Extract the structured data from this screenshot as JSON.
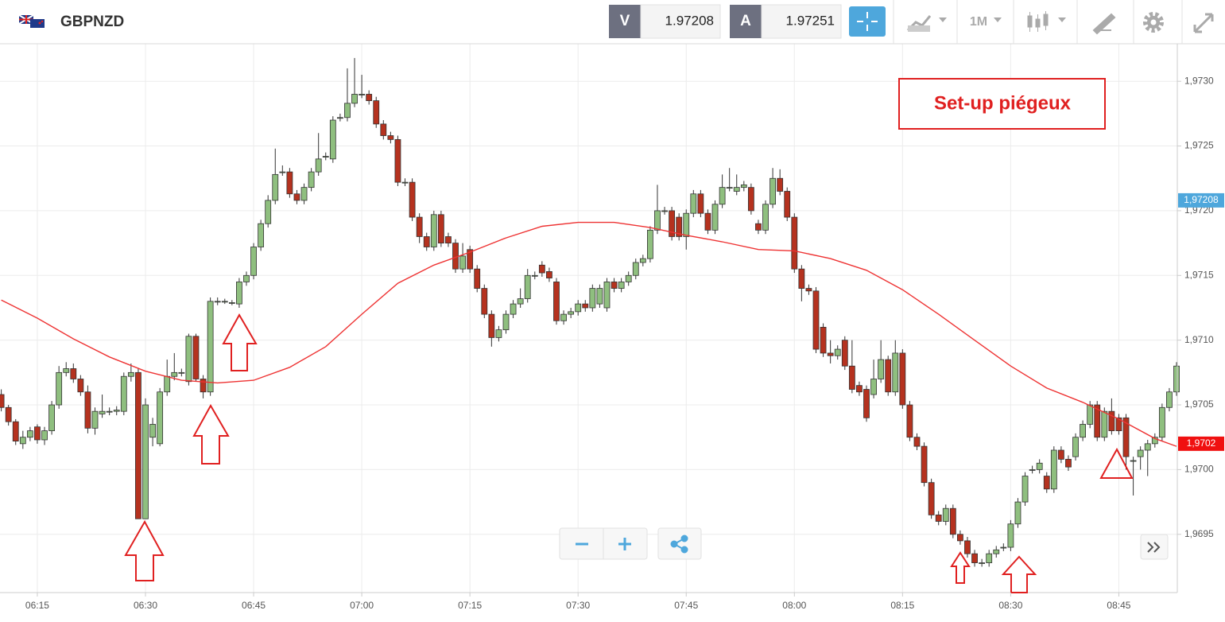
{
  "header": {
    "symbol": "GBPNZD",
    "bid_label": "V",
    "bid": "1.97208",
    "ask_label": "A",
    "ask": "1.97251",
    "timeframe": "1M"
  },
  "chart_data": {
    "type": "candlestick",
    "annotation": "Set-up piégeux",
    "up_color": "#8fbf7f",
    "down_color": "#b5321f",
    "grid": true,
    "ylim": [
      1.96905,
      1.97329
    ],
    "yticks": [
      {
        "value": 1.9695,
        "label": "1,9695"
      },
      {
        "value": 1.97,
        "label": "1,9700"
      },
      {
        "value": 1.9705,
        "label": "1,9705"
      },
      {
        "value": 1.971,
        "label": "1,9710"
      },
      {
        "value": 1.9715,
        "label": "1,9715"
      },
      {
        "value": 1.972,
        "label": "1,9720"
      },
      {
        "value": 1.9725,
        "label": "1,9725"
      },
      {
        "value": 1.973,
        "label": "1,9730"
      }
    ],
    "price_tags": [
      {
        "value": 1.97208,
        "label": "1,97208",
        "color": "#4ea7dc"
      },
      {
        "value": 1.9702,
        "label": "1,9702",
        "color": "#f01010"
      }
    ],
    "x": [
      "06:10",
      "06:11",
      "06:12",
      "06:13",
      "06:14",
      "06:15",
      "06:16",
      "06:17",
      "06:18",
      "06:19",
      "06:20",
      "06:21",
      "06:22",
      "06:23",
      "06:24",
      "06:25",
      "06:26",
      "06:27",
      "06:28",
      "06:29",
      "06:30",
      "06:31",
      "06:32",
      "06:33",
      "06:34",
      "06:35",
      "06:36",
      "06:37",
      "06:38",
      "06:39",
      "06:40",
      "06:41",
      "06:42",
      "06:43",
      "06:44",
      "06:45",
      "06:46",
      "06:47",
      "06:48",
      "06:49",
      "06:50",
      "06:51",
      "06:52",
      "06:53",
      "06:54",
      "06:55",
      "06:56",
      "06:57",
      "06:58",
      "06:59",
      "07:00",
      "07:01",
      "07:02",
      "07:03",
      "07:04",
      "07:05",
      "07:06",
      "07:07",
      "07:08",
      "07:09",
      "07:10",
      "07:11",
      "07:12",
      "07:13",
      "07:14",
      "07:15",
      "07:16",
      "07:17",
      "07:18",
      "07:19",
      "07:20",
      "07:21",
      "07:22",
      "07:23",
      "07:24",
      "07:25",
      "07:26",
      "07:27",
      "07:28",
      "07:29",
      "07:30",
      "07:31",
      "07:32",
      "07:33",
      "07:34",
      "07:35",
      "07:36",
      "07:37",
      "07:38",
      "07:39",
      "07:40",
      "07:41",
      "07:42",
      "07:43",
      "07:44",
      "07:45",
      "07:46",
      "07:47",
      "07:48",
      "07:49",
      "07:50",
      "07:51",
      "07:52",
      "07:53",
      "07:54",
      "07:55",
      "07:56",
      "07:57",
      "07:58",
      "07:59",
      "08:00",
      "08:01",
      "08:02",
      "08:03",
      "08:04",
      "08:05",
      "08:06",
      "08:07",
      "08:08",
      "08:09",
      "08:10",
      "08:11",
      "08:12",
      "08:13",
      "08:14",
      "08:15",
      "08:16",
      "08:17",
      "08:18",
      "08:19",
      "08:20",
      "08:21",
      "08:22",
      "08:23",
      "08:24",
      "08:25",
      "08:26",
      "08:27",
      "08:28",
      "08:29",
      "08:30",
      "08:31",
      "08:32",
      "08:33",
      "08:34",
      "08:35",
      "08:36",
      "08:37",
      "08:38",
      "08:39",
      "08:40",
      "08:41",
      "08:42",
      "08:43",
      "08:44",
      "08:45",
      "08:46",
      "08:47",
      "08:48",
      "08:49",
      "08:50",
      "08:51",
      "08:52",
      "08:53"
    ],
    "open": [
      1.97058,
      1.97048,
      1.97037,
      1.9702,
      1.97025,
      1.97033,
      1.97023,
      1.9703,
      1.9705,
      1.97075,
      1.97078,
      1.9707,
      1.9706,
      1.97032,
      1.97043,
      1.97045,
      1.97045,
      1.97045,
      1.97072,
      1.97075,
      1.96962,
      1.97025,
      1.9702,
      1.9706,
      1.97072,
      1.97075,
      1.97068,
      1.97103,
      1.9707,
      1.9706,
      1.9713,
      1.9713,
      1.97129,
      1.97128,
      1.97145,
      1.9715,
      1.97172,
      1.9719,
      1.97208,
      1.9723,
      1.9723,
      1.97213,
      1.97208,
      1.97218,
      1.9723,
      1.97242,
      1.9724,
      1.97272,
      1.97272,
      1.97283,
      1.9729,
      1.9729,
      1.97285,
      1.97267,
      1.97258,
      1.97255,
      1.97222,
      1.97222,
      1.97195,
      1.9718,
      1.97172,
      1.97197,
      1.9718,
      1.97175,
      1.97155,
      1.9717,
      1.97155,
      1.9714,
      1.9712,
      1.97102,
      1.97108,
      1.9712,
      1.97128,
      1.97132,
      1.9715,
      1.97158,
      1.97153,
      1.97145,
      1.97115,
      1.9712,
      1.97122,
      1.97128,
      1.97125,
      1.97128,
      1.97125,
      1.97145,
      1.9714,
      1.97145,
      1.9715,
      1.9716,
      1.97163,
      1.97185,
      1.972,
      1.972,
      1.97195,
      1.9718,
      1.97198,
      1.97213,
      1.97198,
      1.97185,
      1.97205,
      1.97218,
      1.97215,
      1.97218,
      1.97218,
      1.9719,
      1.97185,
      1.97205,
      1.97225,
      1.97215,
      1.97195,
      1.97155,
      1.9714,
      1.97138,
      1.9711,
      1.9709,
      1.97088,
      1.971,
      1.9708,
      1.97065,
      1.97062,
      1.97058,
      1.9707,
      1.97085,
      1.9706,
      1.9709,
      1.9705,
      1.97025,
      1.97018,
      1.9699,
      1.96965,
      1.9696,
      1.9697,
      1.9695,
      1.96945,
      1.96935,
      1.96928,
      1.96928,
      1.96935,
      1.9694,
      1.9694,
      1.96958,
      1.96975,
      1.97,
      1.97,
      1.96995,
      1.96985,
      1.97015,
      1.97008,
      1.9701,
      1.97025,
      1.97035,
      1.9705,
      1.97025,
      1.97045,
      1.9704,
      1.9704,
      1.97007,
      1.9701,
      1.97015,
      1.9702,
      1.97025,
      1.97048,
      1.9706
    ],
    "high": [
      1.97062,
      1.9705,
      1.97039,
      1.9703,
      1.97033,
      1.97035,
      1.97033,
      1.97053,
      1.9708,
      1.97083,
      1.97082,
      1.97073,
      1.97065,
      1.97048,
      1.97058,
      1.97048,
      1.97049,
      1.97075,
      1.97082,
      1.97078,
      1.97055,
      1.9704,
      1.97063,
      1.97085,
      1.9709,
      1.97078,
      1.97105,
      1.97105,
      1.97073,
      1.97133,
      1.97133,
      1.97132,
      1.97131,
      1.97148,
      1.97153,
      1.97175,
      1.97193,
      1.97212,
      1.97248,
      1.97235,
      1.97233,
      1.97216,
      1.97221,
      1.97233,
      1.9726,
      1.97245,
      1.97273,
      1.97275,
      1.9731,
      1.97318,
      1.97305,
      1.97293,
      1.97288,
      1.9727,
      1.97261,
      1.97258,
      1.97225,
      1.97225,
      1.97198,
      1.97183,
      1.972,
      1.972,
      1.97183,
      1.97178,
      1.97175,
      1.97173,
      1.97158,
      1.97143,
      1.97123,
      1.97111,
      1.97123,
      1.97131,
      1.9714,
      1.97155,
      1.97153,
      1.97161,
      1.97156,
      1.97148,
      1.97123,
      1.97125,
      1.97131,
      1.97131,
      1.97143,
      1.97143,
      1.97148,
      1.97148,
      1.97148,
      1.97153,
      1.97163,
      1.97166,
      1.97188,
      1.9722,
      1.97203,
      1.97203,
      1.97198,
      1.97201,
      1.97216,
      1.97216,
      1.97201,
      1.97208,
      1.97228,
      1.97233,
      1.97228,
      1.97223,
      1.97221,
      1.97193,
      1.97208,
      1.97233,
      1.97232,
      1.97218,
      1.97198,
      1.97158,
      1.97143,
      1.97141,
      1.97113,
      1.971,
      1.97096,
      1.97103,
      1.971,
      1.97068,
      1.97065,
      1.97085,
      1.971,
      1.97088,
      1.971,
      1.97093,
      1.97053,
      1.97028,
      1.97021,
      1.96993,
      1.96968,
      1.96973,
      1.96973,
      1.96953,
      1.96948,
      1.96938,
      1.96931,
      1.96938,
      1.96941,
      1.96943,
      1.96961,
      1.96978,
      1.96998,
      1.97003,
      1.97008,
      1.96998,
      1.97018,
      1.97018,
      1.97011,
      1.97028,
      1.97038,
      1.97053,
      1.97053,
      1.97048,
      1.97055,
      1.97043,
      1.97043,
      1.9701,
      1.97018,
      1.97023,
      1.97028,
      1.97051,
      1.97063,
      1.97083
    ],
    "low": [
      1.97045,
      1.97034,
      1.97019,
      1.97016,
      1.97022,
      1.9702,
      1.97019,
      1.97027,
      1.97047,
      1.97072,
      1.97067,
      1.97057,
      1.97028,
      1.97027,
      1.9704,
      1.97042,
      1.97042,
      1.97042,
      1.97068,
      1.96962,
      1.96962,
      1.97018,
      1.97018,
      1.97057,
      1.97069,
      1.97072,
      1.97065,
      1.97068,
      1.97055,
      1.97057,
      1.97127,
      1.97128,
      1.97127,
      1.97125,
      1.97142,
      1.97147,
      1.97169,
      1.97187,
      1.97205,
      1.97227,
      1.9721,
      1.97205,
      1.97205,
      1.97215,
      1.97227,
      1.97239,
      1.97237,
      1.97269,
      1.97269,
      1.9728,
      1.97287,
      1.97282,
      1.97264,
      1.97255,
      1.97252,
      1.97219,
      1.97219,
      1.97192,
      1.97175,
      1.97169,
      1.97169,
      1.97172,
      1.97172,
      1.97152,
      1.97152,
      1.97152,
      1.97137,
      1.97117,
      1.97095,
      1.97099,
      1.97105,
      1.97117,
      1.97125,
      1.97129,
      1.97147,
      1.97149,
      1.97145,
      1.97112,
      1.97112,
      1.97117,
      1.97119,
      1.97122,
      1.97122,
      1.97125,
      1.97122,
      1.97137,
      1.97137,
      1.97142,
      1.97147,
      1.97157,
      1.9716,
      1.97182,
      1.97197,
      1.97177,
      1.97177,
      1.9717,
      1.97195,
      1.97195,
      1.97182,
      1.97182,
      1.97202,
      1.97215,
      1.97212,
      1.97215,
      1.97197,
      1.97182,
      1.97182,
      1.97202,
      1.97212,
      1.97192,
      1.97152,
      1.9713,
      1.97135,
      1.9709,
      1.97087,
      1.97082,
      1.97085,
      1.97077,
      1.97059,
      1.97057,
      1.97037,
      1.97055,
      1.97067,
      1.97057,
      1.97057,
      1.97047,
      1.97022,
      1.97015,
      1.96987,
      1.96962,
      1.96957,
      1.96957,
      1.96947,
      1.96942,
      1.96932,
      1.96925,
      1.96925,
      1.96925,
      1.96932,
      1.96937,
      1.96937,
      1.96955,
      1.96972,
      1.96997,
      1.96997,
      1.96982,
      1.96982,
      1.97005,
      1.96999,
      1.97007,
      1.97022,
      1.97032,
      1.97022,
      1.97022,
      1.97027,
      1.97027,
      1.97,
      1.9698,
      1.97,
      1.96995,
      1.97017,
      1.97022,
      1.97045,
      1.97057
    ],
    "close": [
      1.97048,
      1.97037,
      1.97022,
      1.97025,
      1.9703,
      1.97023,
      1.9703,
      1.9705,
      1.97075,
      1.97078,
      1.9707,
      1.9706,
      1.97032,
      1.97045,
      1.97045,
      1.97045,
      1.97046,
      1.97072,
      1.97075,
      1.96962,
      1.9705,
      1.97035,
      1.9706,
      1.97072,
      1.97075,
      1.97075,
      1.97103,
      1.9707,
      1.9706,
      1.9713,
      1.9713,
      1.9713,
      1.97129,
      1.97145,
      1.9715,
      1.97172,
      1.9719,
      1.97208,
      1.97228,
      1.9723,
      1.97213,
      1.97208,
      1.97218,
      1.9723,
      1.9724,
      1.97242,
      1.9727,
      1.97272,
      1.97283,
      1.9729,
      1.9729,
      1.97285,
      1.97267,
      1.97258,
      1.97255,
      1.97222,
      1.97222,
      1.97195,
      1.9718,
      1.97172,
      1.97197,
      1.97175,
      1.97175,
      1.97155,
      1.97165,
      1.97155,
      1.9714,
      1.9712,
      1.97102,
      1.97108,
      1.9712,
      1.97128,
      1.97132,
      1.9715,
      1.9715,
      1.97152,
      1.97148,
      1.97115,
      1.9712,
      1.97122,
      1.97128,
      1.97125,
      1.9714,
      1.9714,
      1.97145,
      1.9714,
      1.97145,
      1.9715,
      1.9716,
      1.97163,
      1.97185,
      1.972,
      1.972,
      1.9718,
      1.9718,
      1.97198,
      1.97213,
      1.97198,
      1.97185,
      1.97205,
      1.97218,
      1.97218,
      1.97218,
      1.9722,
      1.972,
      1.97185,
      1.97205,
      1.97225,
      1.97215,
      1.97195,
      1.97155,
      1.9714,
      1.97138,
      1.97093,
      1.9709,
      1.97088,
      1.97093,
      1.9708,
      1.97062,
      1.9706,
      1.9704,
      1.9707,
      1.97085,
      1.9706,
      1.9709,
      1.9705,
      1.97025,
      1.97018,
      1.9699,
      1.96965,
      1.9696,
      1.9697,
      1.9695,
      1.96945,
      1.96935,
      1.96928,
      1.96928,
      1.96935,
      1.96938,
      1.9694,
      1.96958,
      1.96975,
      1.96995,
      1.97,
      1.97005,
      1.96985,
      1.97015,
      1.97008,
      1.97002,
      1.97025,
      1.97035,
      1.9705,
      1.97025,
      1.97045,
      1.9703,
      1.9703,
      1.9701,
      1.97007,
      1.97015,
      1.9702,
      1.97025,
      1.97048,
      1.9706,
      1.9708
    ],
    "moving_average": {
      "color": "#ee3333",
      "x": [
        "06:10",
        "06:15",
        "06:20",
        "06:25",
        "06:30",
        "06:35",
        "06:40",
        "06:45",
        "06:50",
        "06:55",
        "07:00",
        "07:05",
        "07:10",
        "07:15",
        "07:20",
        "07:25",
        "07:30",
        "07:35",
        "07:40",
        "07:45",
        "07:50",
        "07:55",
        "08:00",
        "08:05",
        "08:10",
        "08:15",
        "08:20",
        "08:25",
        "08:30",
        "08:35",
        "08:40",
        "08:45",
        "08:50",
        "08:53"
      ],
      "values": [
        1.97131,
        1.97117,
        1.97101,
        1.97087,
        1.97076,
        1.97069,
        1.97067,
        1.97069,
        1.97079,
        1.97095,
        1.9712,
        1.97144,
        1.97158,
        1.97168,
        1.97179,
        1.97188,
        1.97191,
        1.97191,
        1.97187,
        1.97181,
        1.97176,
        1.9717,
        1.97169,
        1.97163,
        1.97154,
        1.97139,
        1.9712,
        1.971,
        1.9708,
        1.97063,
        1.97052,
        1.97039,
        1.97024,
        1.97018
      ]
    }
  }
}
